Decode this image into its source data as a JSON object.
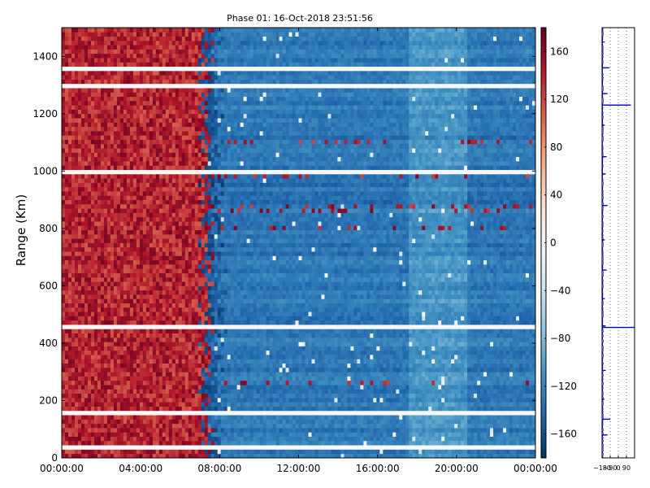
{
  "chart_data": [
    {
      "type": "heatmap",
      "title": "Phase 01: 16-Oct-2018 23:51:56",
      "ylabel": "Range (Km)",
      "xlabel": "",
      "x_ticks": [
        "00:00:00",
        "04:00:00",
        "08:00:00",
        "12:00:00",
        "16:00:00",
        "20:00:00",
        "00:00:00"
      ],
      "x_range_hours": [
        0,
        24
      ],
      "y_ticks": [
        0,
        200,
        400,
        600,
        800,
        1000,
        1200,
        1400
      ],
      "ylim": [
        0,
        1500
      ],
      "colormap": "RdBu_r",
      "value_range": [
        -180,
        180
      ],
      "colorbar_ticks": [
        160,
        120,
        80,
        40,
        0,
        -40,
        -80,
        -120,
        -160
      ],
      "regions": [
        {
          "x_from_hours": 0,
          "x_to_hours": 7.3,
          "phase": 140
        },
        {
          "x_from_hours": 7.3,
          "x_to_hours": 24,
          "phase": -130
        }
      ],
      "blank_range_rows_km": [
        30,
        155,
        455,
        990,
        1300,
        1360
      ],
      "noisy_range_rows_km": [
        265,
        805,
        860,
        880,
        985,
        1095
      ],
      "grid": false,
      "legend": "colorbar-right"
    },
    {
      "type": "line",
      "orientation": "vertical-profile",
      "x_ticks": [
        "-180",
        "-90",
        "0",
        "90"
      ],
      "xlim": [
        -180,
        180
      ],
      "ylim": [
        0,
        1500
      ],
      "grid": true,
      "baseline": -180,
      "spikes": [
        {
          "range_km": 455,
          "value": 180
        },
        {
          "range_km": 1230,
          "value": 140
        },
        {
          "range_km": 135,
          "value": -90
        },
        {
          "range_km": 1360,
          "value": -100
        },
        {
          "range_km": 880,
          "value": -120
        },
        {
          "range_km": 80,
          "value": -120
        },
        {
          "range_km": 655,
          "value": -130
        },
        {
          "range_km": 1270,
          "value": -120
        },
        {
          "range_km": 1050,
          "value": -130
        },
        {
          "range_km": 460,
          "value": -140
        },
        {
          "range_km": 990,
          "value": -140
        },
        {
          "range_km": 305,
          "value": -140
        },
        {
          "range_km": 555,
          "value": -150
        },
        {
          "range_km": 760,
          "value": -150
        },
        {
          "range_km": 1450,
          "value": -150
        },
        {
          "range_km": 205,
          "value": -155
        },
        {
          "range_km": 1160,
          "value": -150
        }
      ]
    }
  ]
}
